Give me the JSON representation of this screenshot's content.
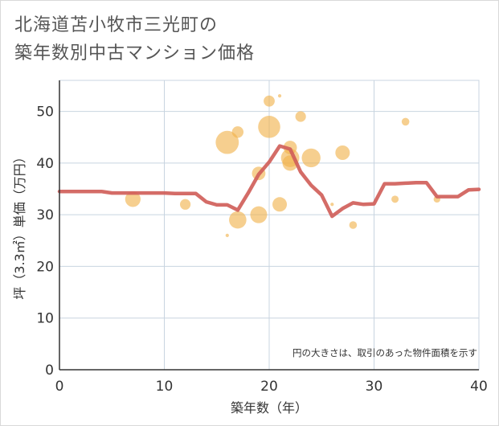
{
  "title": {
    "line1": "北海道苫小牧市三光町の",
    "line2": "築年数別中古マンション価格"
  },
  "colors": {
    "bubble": "#f0b24a",
    "line": "#d0605a",
    "grid": "#c8d4e0",
    "axis": "#333333",
    "text": "#555555"
  },
  "chart_data": {
    "type": "scatter",
    "xlabel": "築年数（年）",
    "ylabel": "坪（3.3㎡）単価（万円）",
    "xlim": [
      0,
      40
    ],
    "ylim": [
      0,
      56
    ],
    "xticks": [
      0,
      10,
      20,
      30,
      40
    ],
    "yticks": [
      0,
      10,
      20,
      30,
      40,
      50
    ],
    "grid": true,
    "annotation": "円の大きさは、取引のあった物件面積を示す",
    "points": [
      {
        "x": 7,
        "y": 33,
        "size": 3.2
      },
      {
        "x": 12,
        "y": 32,
        "size": 2.2
      },
      {
        "x": 16,
        "y": 26,
        "size": 0.7
      },
      {
        "x": 16,
        "y": 44,
        "size": 4.8
      },
      {
        "x": 17,
        "y": 46,
        "size": 2.4
      },
      {
        "x": 17,
        "y": 29,
        "size": 3.6
      },
      {
        "x": 19,
        "y": 38,
        "size": 2.8
      },
      {
        "x": 19,
        "y": 30,
        "size": 3.5
      },
      {
        "x": 20,
        "y": 52,
        "size": 2.3
      },
      {
        "x": 20,
        "y": 47,
        "size": 4.6
      },
      {
        "x": 21,
        "y": 53,
        "size": 0.7
      },
      {
        "x": 21,
        "y": 32,
        "size": 3.0
      },
      {
        "x": 22,
        "y": 43,
        "size": 2.8
      },
      {
        "x": 22,
        "y": 41,
        "size": 3.8
      },
      {
        "x": 22,
        "y": 40,
        "size": 3.2
      },
      {
        "x": 23,
        "y": 49,
        "size": 2.2
      },
      {
        "x": 24,
        "y": 41,
        "size": 3.9
      },
      {
        "x": 26,
        "y": 32,
        "size": 0.7
      },
      {
        "x": 27,
        "y": 42,
        "size": 3.0
      },
      {
        "x": 28,
        "y": 28,
        "size": 1.6
      },
      {
        "x": 32,
        "y": 33,
        "size": 1.5
      },
      {
        "x": 33,
        "y": 48,
        "size": 1.6
      },
      {
        "x": 36,
        "y": 33,
        "size": 1.4
      }
    ],
    "series": [
      {
        "type": "line",
        "x": [
          0,
          1,
          2,
          3,
          4,
          5,
          6,
          7,
          8,
          9,
          10,
          11,
          12,
          13,
          14,
          15,
          16,
          17,
          18,
          19,
          20,
          21,
          22,
          23,
          24,
          25,
          26,
          27,
          28,
          29,
          30,
          31,
          32,
          33,
          34,
          35,
          36,
          37,
          38,
          39,
          40
        ],
        "y": [
          34.5,
          34.5,
          34.5,
          34.5,
          34.5,
          34.2,
          34.2,
          34.2,
          34.2,
          34.2,
          34.2,
          34.1,
          34.1,
          34.1,
          32.5,
          31.9,
          31.9,
          30.9,
          34.2,
          37.8,
          40.2,
          43.3,
          42.7,
          38.3,
          35.7,
          33.8,
          29.7,
          31.2,
          32.3,
          32.0,
          32.1,
          36.0,
          36.0,
          36.1,
          36.2,
          36.2,
          33.5,
          33.5,
          33.5,
          34.8,
          34.9
        ]
      }
    ]
  }
}
